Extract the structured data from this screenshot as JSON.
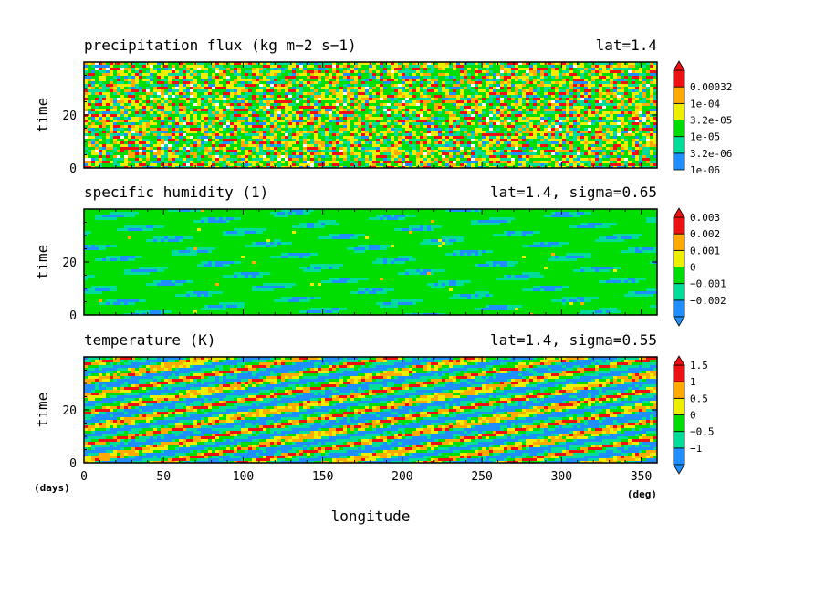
{
  "colors": {
    "contour": [
      "#1f8fff",
      "#00dd99",
      "#00dd00",
      "#eeee00",
      "#ffaa00",
      "#ee1111"
    ],
    "outline": "#000000",
    "missing": "#ffffff"
  },
  "chart_data": [
    {
      "type": "heatmap",
      "title": "precipitation flux (kg m−2 s−1)",
      "subtitle": "lat=1.4",
      "ylabel": "time",
      "xlim": [
        0,
        360
      ],
      "ylim": [
        0,
        40
      ],
      "yticks": [
        "0",
        "20"
      ],
      "colorbar": {
        "scale": "log",
        "labels": [
          "1e-06",
          "3.2e-06",
          "1e-05",
          "3.2e-05",
          "1e-04",
          "0.00032"
        ],
        "extend": "max"
      },
      "pattern": "noisy",
      "has_missing": true
    },
    {
      "type": "heatmap",
      "title": "specific humidity (1)",
      "subtitle": "lat=1.4, sigma=0.65",
      "ylabel": "time",
      "xlim": [
        0,
        360
      ],
      "ylim": [
        0,
        40
      ],
      "yticks": [
        "0",
        "20"
      ],
      "colorbar": {
        "scale": "linear",
        "labels": [
          "−0.002",
          "−0.001",
          "0",
          "0.001",
          "0.002",
          "0.003"
        ],
        "extend": "both"
      },
      "pattern": "mostly-zero",
      "has_missing": false
    },
    {
      "type": "heatmap",
      "title": "temperature (K)",
      "subtitle": "lat=1.4, sigma=0.55",
      "ylabel": "time",
      "xlabel": "longitude",
      "xlim": [
        0,
        360
      ],
      "ylim": [
        0,
        40
      ],
      "yticks": [
        "0",
        "20"
      ],
      "xticks": [
        "0",
        "50",
        "100",
        "150",
        "200",
        "250",
        "300",
        "350"
      ],
      "x_unit": "(deg)",
      "y_unit": "(days)",
      "colorbar": {
        "scale": "linear",
        "labels": [
          "−1",
          "−0.5",
          "0",
          "0.5",
          "1",
          "1.5"
        ],
        "extend": "both"
      },
      "pattern": "diagonal-waves",
      "has_missing": false
    }
  ]
}
